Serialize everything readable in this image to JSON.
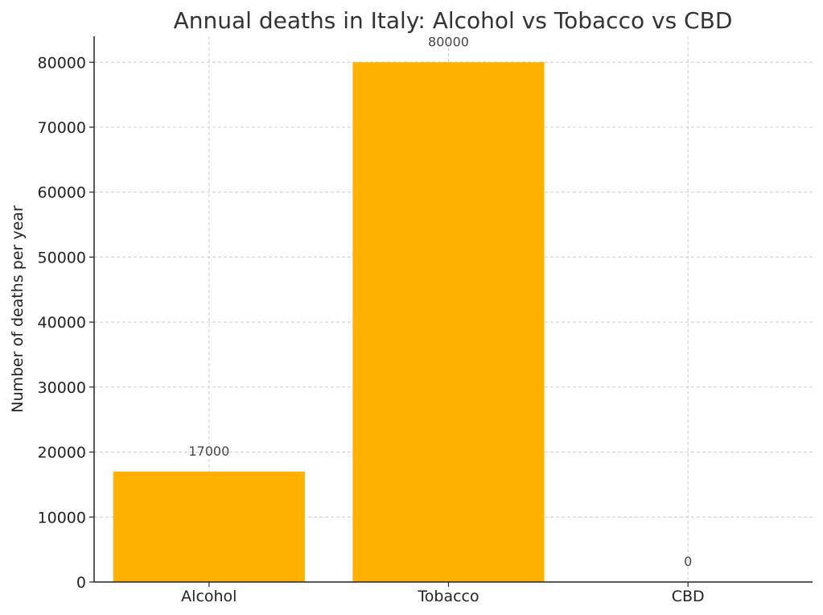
{
  "chart_data": {
    "type": "bar",
    "title": "Annual deaths in Italy: Alcohol vs Tobacco vs CBD",
    "xlabel": "",
    "ylabel": "Number of deaths per year",
    "categories": [
      "Alcohol",
      "Tobacco",
      "CBD"
    ],
    "values": [
      17000,
      80000,
      0
    ],
    "data_labels": [
      "17000",
      "80000",
      "0"
    ],
    "ylim": [
      0,
      84000
    ],
    "yticks": [
      0,
      10000,
      20000,
      30000,
      40000,
      50000,
      60000,
      70000,
      80000
    ],
    "ytick_labels": [
      "0",
      "10000",
      "20000",
      "30000",
      "40000",
      "50000",
      "60000",
      "70000",
      "80000"
    ],
    "grid": true,
    "bar_color": "#FFB000"
  }
}
